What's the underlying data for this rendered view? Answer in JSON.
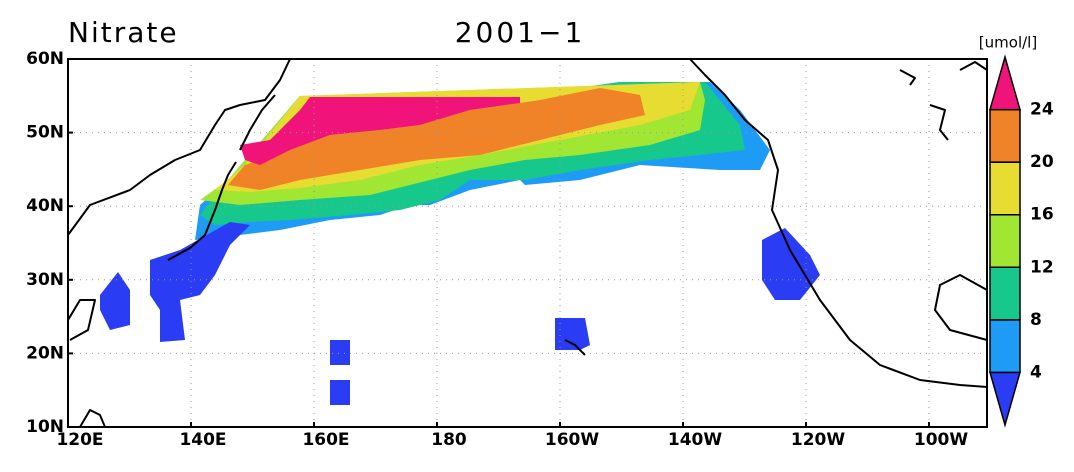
{
  "title": "Nitrate",
  "subtitle": "2001−1",
  "unit": "[umol/l]",
  "lon_labels": [
    "120E",
    "140E",
    "160E",
    "180",
    "160W",
    "140W",
    "120W",
    "100W"
  ],
  "lat_labels": [
    "60N",
    "50N",
    "40N",
    "30N",
    "20N",
    "10N"
  ],
  "colorbar": {
    "levels": [
      4,
      8,
      12,
      16,
      20,
      24
    ],
    "colors": [
      "#2b3cf5",
      "#1e9bf5",
      "#16c88c",
      "#a0e632",
      "#e6dc32",
      "#f08228",
      "#f0147a"
    ]
  }
}
